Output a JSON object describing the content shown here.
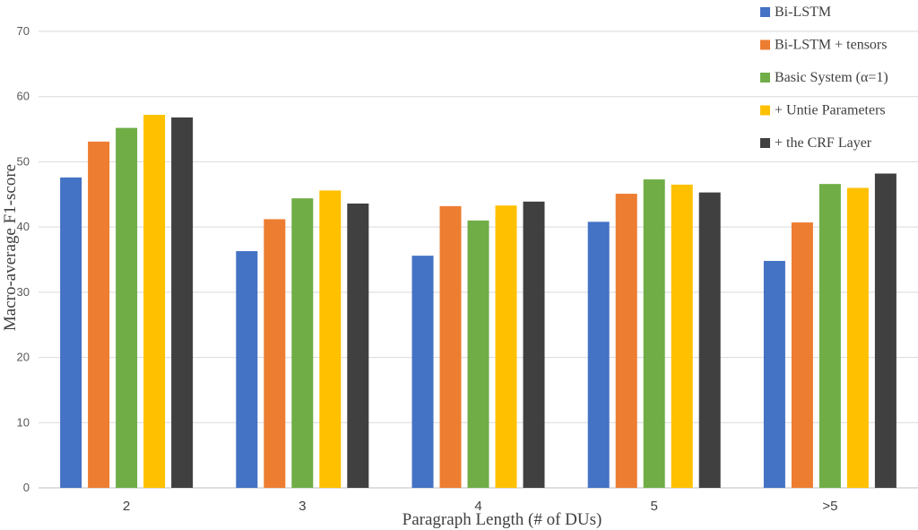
{
  "chart_data": {
    "type": "bar",
    "xlabel": "Paragraph Length (# of DUs)",
    "ylabel": "Macro-average F1-score",
    "ylim": [
      0,
      70
    ],
    "yticks": [
      0,
      10,
      20,
      30,
      40,
      50,
      60,
      70
    ],
    "grid": true,
    "legend_position": "top-right",
    "categories": [
      "2",
      "3",
      "4",
      "5",
      ">5"
    ],
    "series": [
      {
        "name": "Bi-LSTM",
        "color": "#4472c4",
        "values": [
          47.6,
          36.3,
          35.6,
          40.8,
          34.8
        ]
      },
      {
        "name": "Bi-LSTM + tensors",
        "color": "#ed7d31",
        "values": [
          53.1,
          41.2,
          43.2,
          45.1,
          40.7
        ]
      },
      {
        "name": "Basic System (α=1)",
        "color": "#70ad47",
        "values": [
          55.2,
          44.4,
          41.0,
          47.3,
          46.6
        ]
      },
      {
        "name": "+ Untie Parameters",
        "color": "#ffc000",
        "values": [
          57.2,
          45.6,
          43.3,
          46.5,
          46.0
        ]
      },
      {
        "name": "+ the CRF Layer",
        "color": "#404040",
        "values": [
          56.8,
          43.6,
          43.9,
          45.3,
          48.2
        ]
      }
    ]
  }
}
